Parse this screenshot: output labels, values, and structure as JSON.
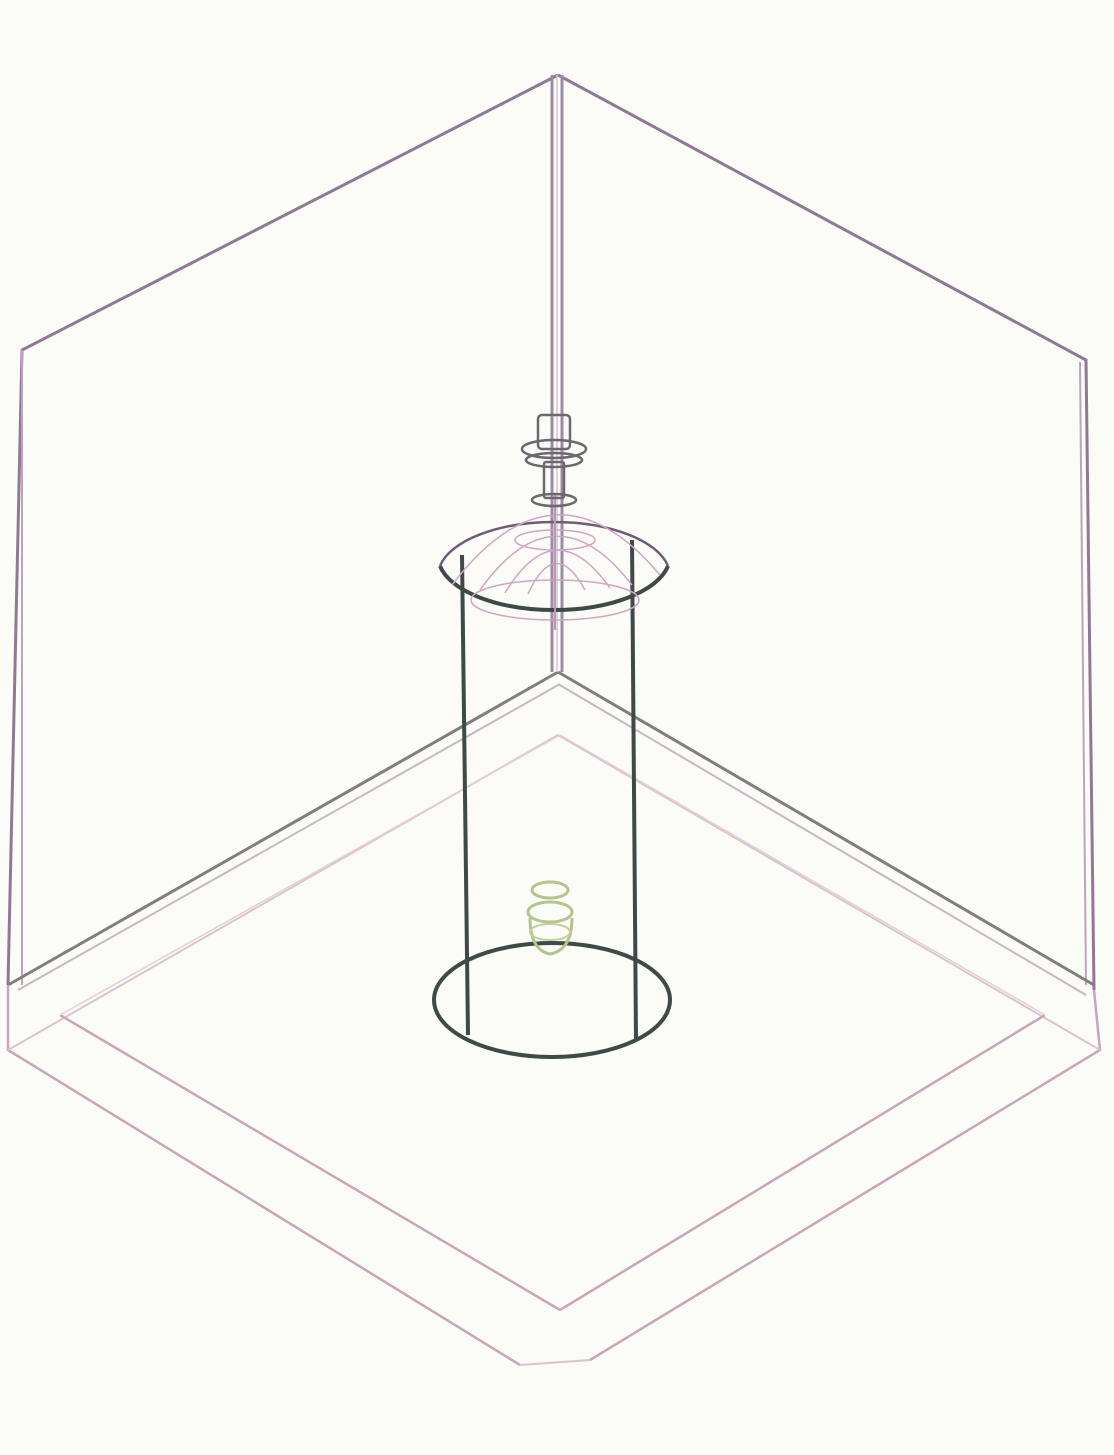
{
  "figure": {
    "kind": "isometric-wireframe",
    "colors": {
      "background": "#fbfbf7",
      "walls": "#8e7a92",
      "wall_faint": "#c7b8c4",
      "base": "#c8a7ba",
      "base_faint": "#dac4d0",
      "cylinder": "#3f4a48",
      "pole": "#9a8da0",
      "dome_lines": "#cfa6c4",
      "fitting": "#6b6870",
      "small_part": "#b5c48c"
    },
    "parts": [
      "back-wall-left",
      "back-wall-right",
      "corner-pole",
      "base-plate",
      "cylinder-enclosure",
      "dome-top",
      "top-fitting",
      "bottom-component"
    ]
  }
}
